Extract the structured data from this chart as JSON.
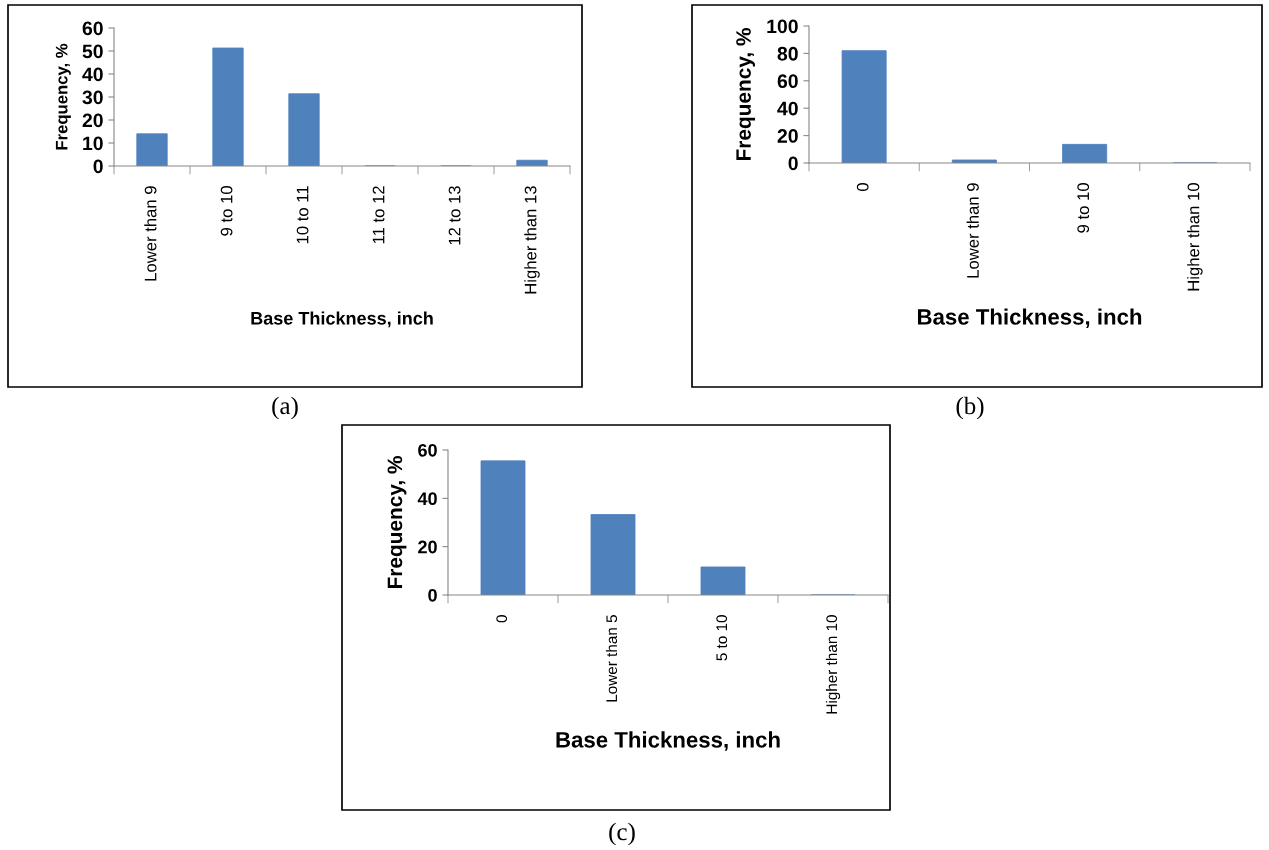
{
  "chart_data": [
    {
      "type": "bar",
      "xlabel": "Base Thickness, inch",
      "ylabel": "Frequency, %",
      "categories": [
        "Lower than 9",
        "9 to 10",
        "10 to 11",
        "11 to 12",
        "12 to 13",
        "Higher than 13"
      ],
      "values": [
        14,
        51.3,
        31.4,
        0,
        0,
        2.5
      ],
      "color": "#4f81bd",
      "ylim": [
        0,
        60
      ],
      "yticks": [
        0,
        10,
        20,
        30,
        40,
        50,
        60
      ],
      "grid": false,
      "legend": false,
      "annotations": [
        "(a)"
      ]
    },
    {
      "type": "bar",
      "xlabel": "Base Thickness, inch",
      "ylabel": "Frequency, %",
      "categories": [
        "0",
        "Lower than 9",
        "9 to 10",
        "Higher than 10"
      ],
      "values": [
        82,
        2.2,
        13.6,
        0
      ],
      "color": "#4f81bd",
      "ylim": [
        0,
        100
      ],
      "yticks": [
        0,
        20,
        40,
        60,
        80,
        100
      ],
      "grid": false,
      "legend": false,
      "annotations": [
        "(b)"
      ]
    },
    {
      "type": "bar",
      "xlabel": "Base Thickness, inch",
      "ylabel": "Frequency, %",
      "categories": [
        "0",
        "Lower than 5",
        "5 to 10",
        "Higher than 10"
      ],
      "values": [
        55.5,
        33.3,
        11.6,
        0
      ],
      "color": "#4f81bd",
      "ylim": [
        0,
        60
      ],
      "yticks": [
        0,
        20,
        40,
        60
      ],
      "grid": false,
      "legend": false,
      "annotations": [
        "(c)"
      ]
    }
  ]
}
